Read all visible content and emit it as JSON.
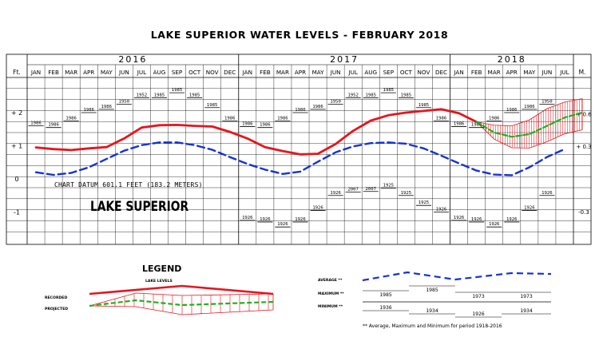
{
  "title": "LAKE SUPERIOR WATER LEVELS - FEBRUARY 2018",
  "chart_data": {
    "type": "line",
    "title": "LAKE SUPERIOR WATER LEVELS - FEBRUARY 2018",
    "lake_label": "LAKE SUPERIOR",
    "datum_note": "CHART DATUM  601.1 FEET (183.2 METERS)",
    "years": [
      "2016",
      "2017",
      "2018"
    ],
    "months": [
      "JAN",
      "FEB",
      "MAR",
      "APR",
      "MAY",
      "JUN",
      "JUL",
      "AUG",
      "SEP",
      "OCT",
      "NOV",
      "DEC",
      "JAN",
      "FEB",
      "MAR",
      "APR",
      "MAY",
      "JUN",
      "JUL",
      "AUG",
      "SEP",
      "OCT",
      "NOV",
      "DEC",
      "JAN",
      "FEB",
      "MAR",
      "APR",
      "MAY",
      "JUN",
      "JUL"
    ],
    "left_axis": {
      "label": "Ft.",
      "ticks": [
        {
          "v": 2,
          "label": "+ 2"
        },
        {
          "v": 1,
          "label": "+ 1"
        },
        {
          "v": 0,
          "label": "0"
        },
        {
          "v": -1,
          "label": "-1"
        }
      ]
    },
    "right_axis": {
      "label": "M.",
      "ticks": [
        {
          "m": 0.6,
          "label": "+ 0.6"
        },
        {
          "m": 0.3,
          "label": "+ 0.3"
        },
        {
          "m": -0.3,
          "label": "-0.3"
        }
      ]
    },
    "ylim": [
      -1.9,
      3.7
    ],
    "grid": true,
    "series": [
      {
        "name": "RECORDED",
        "color": "#e8141c",
        "start_index": 0,
        "values": [
          0.95,
          0.9,
          0.87,
          0.92,
          0.96,
          1.22,
          1.55,
          1.62,
          1.63,
          1.6,
          1.58,
          1.42,
          1.22,
          0.96,
          0.84,
          0.74,
          0.76,
          1.05,
          1.45,
          1.76,
          1.92,
          2.0,
          2.05,
          2.1,
          1.98,
          1.72
        ]
      },
      {
        "name": "AVERAGE",
        "color": "#1432d8",
        "start_index": 0,
        "values": [
          0.2,
          0.12,
          0.18,
          0.35,
          0.6,
          0.85,
          1.02,
          1.1,
          1.1,
          1.02,
          0.88,
          0.66,
          0.45,
          0.28,
          0.15,
          0.22,
          0.52,
          0.8,
          0.98,
          1.08,
          1.1,
          1.06,
          0.92,
          0.7,
          0.47,
          0.25,
          0.13,
          0.11,
          0.35,
          0.66,
          0.9
        ]
      },
      {
        "name": "PROJECTED",
        "color": "#20b020",
        "start_index": 25,
        "values": [
          1.72,
          1.4,
          1.27,
          1.35,
          1.6,
          1.85,
          2.0
        ]
      }
    ],
    "projected_band": {
      "start_index": 25,
      "upper": [
        1.72,
        1.62,
        1.6,
        1.78,
        2.12,
        2.32,
        2.42
      ],
      "lower": [
        1.72,
        1.2,
        0.94,
        0.93,
        1.12,
        1.36,
        1.48
      ]
    },
    "maximum": [
      {
        "i": 0,
        "year": "1986",
        "v": 1.6
      },
      {
        "i": 1,
        "year": "1986",
        "v": 1.55
      },
      {
        "i": 2,
        "year": "1986",
        "v": 1.75
      },
      {
        "i": 3,
        "year": "1986",
        "v": 2.0
      },
      {
        "i": 4,
        "year": "1986",
        "v": 2.1
      },
      {
        "i": 5,
        "year": "1950",
        "v": 2.25
      },
      {
        "i": 6,
        "year": "1952",
        "v": 2.45
      },
      {
        "i": 7,
        "year": "1985",
        "v": 2.45
      },
      {
        "i": 8,
        "year": "1985",
        "v": 2.6
      },
      {
        "i": 9,
        "year": "1985",
        "v": 2.45
      },
      {
        "i": 10,
        "year": "1985",
        "v": 2.15
      },
      {
        "i": 11,
        "year": "1986",
        "v": 1.75
      },
      {
        "i": 12,
        "year": "1986",
        "v": 1.58
      },
      {
        "i": 13,
        "year": "1986",
        "v": 1.55
      },
      {
        "i": 14,
        "year": "1986",
        "v": 1.75
      },
      {
        "i": 15,
        "year": "1986",
        "v": 2.0
      },
      {
        "i": 16,
        "year": "1986",
        "v": 2.1
      },
      {
        "i": 17,
        "year": "1950",
        "v": 2.25
      },
      {
        "i": 18,
        "year": "1952",
        "v": 2.45
      },
      {
        "i": 19,
        "year": "1985",
        "v": 2.45
      },
      {
        "i": 20,
        "year": "1985",
        "v": 2.6
      },
      {
        "i": 21,
        "year": "1985",
        "v": 2.45
      },
      {
        "i": 22,
        "year": "1985",
        "v": 2.15
      },
      {
        "i": 23,
        "year": "1986",
        "v": 1.75
      },
      {
        "i": 24,
        "year": "1986",
        "v": 1.58
      },
      {
        "i": 25,
        "year": "1986",
        "v": 1.55
      },
      {
        "i": 26,
        "year": "1986",
        "v": 1.75
      },
      {
        "i": 27,
        "year": "1986",
        "v": 2.0
      },
      {
        "i": 28,
        "year": "1986",
        "v": 2.1
      },
      {
        "i": 29,
        "year": "1950",
        "v": 2.25
      }
    ],
    "minimum": [
      {
        "i": 12,
        "year": "1926",
        "v": -1.25
      },
      {
        "i": 13,
        "year": "1926",
        "v": -1.3
      },
      {
        "i": 14,
        "year": "1926",
        "v": -1.45
      },
      {
        "i": 15,
        "year": "1926",
        "v": -1.3
      },
      {
        "i": 16,
        "year": "1926",
        "v": -0.95
      },
      {
        "i": 17,
        "year": "1926",
        "v": -0.5
      },
      {
        "i": 18,
        "year": "2007",
        "v": -0.4
      },
      {
        "i": 19,
        "year": "2007",
        "v": -0.38
      },
      {
        "i": 20,
        "year": "1925",
        "v": -0.28
      },
      {
        "i": 21,
        "year": "1925",
        "v": -0.5
      },
      {
        "i": 22,
        "year": "1925",
        "v": -0.8
      },
      {
        "i": 23,
        "year": "1926",
        "v": -1.0
      },
      {
        "i": 24,
        "year": "1926",
        "v": -1.25
      },
      {
        "i": 25,
        "year": "1926",
        "v": -1.3
      },
      {
        "i": 26,
        "year": "1926",
        "v": -1.45
      },
      {
        "i": 27,
        "year": "1926",
        "v": -1.3
      },
      {
        "i": 28,
        "year": "1926",
        "v": -0.95
      },
      {
        "i": 29,
        "year": "1926",
        "v": -0.5
      }
    ]
  },
  "legend": {
    "title": "LEGEND",
    "sub": "LAKE LEVELS",
    "recorded": "RECORDED",
    "projected": "PROJECTED",
    "average": "AVERAGE **",
    "maximum": "MAXIMUM **",
    "minimum": "MINIMUM **",
    "max_years": [
      "1985",
      "1985",
      "1973",
      "1973"
    ],
    "min_years": [
      "1936",
      "1934",
      "1926",
      "1934"
    ],
    "footnote": "** Average, Maximum and Minimum for period 1918-2016"
  }
}
